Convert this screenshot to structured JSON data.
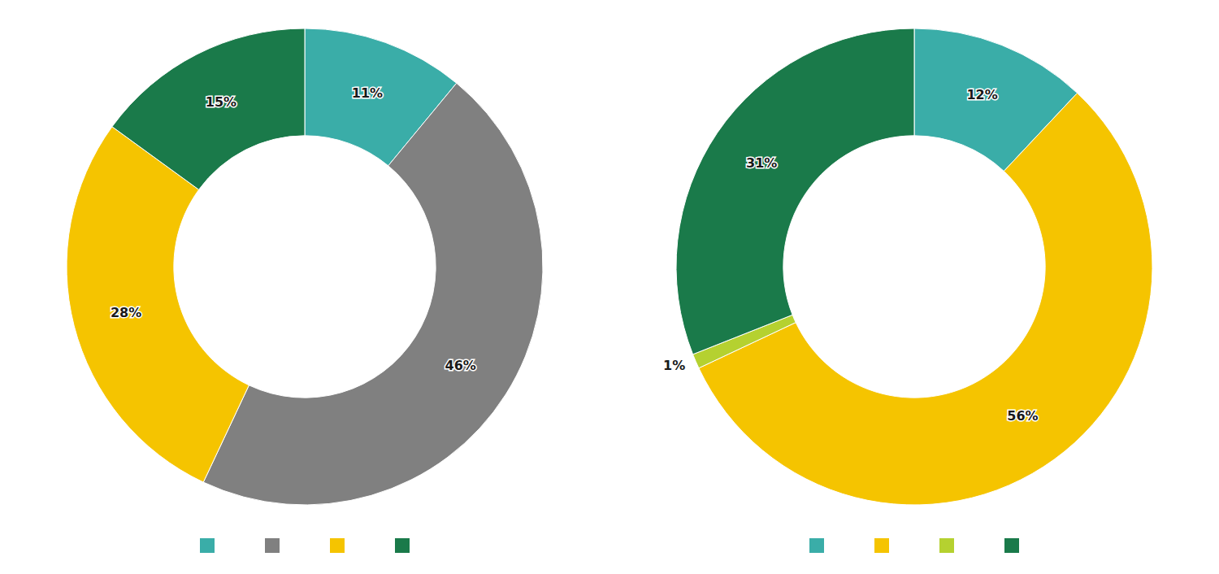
{
  "chart_data": [
    {
      "type": "donut",
      "values": [
        11,
        46,
        28,
        15
      ],
      "value_labels": [
        "11%",
        "46%",
        "28%",
        "15%"
      ],
      "colors": [
        "#3aada8",
        "#808080",
        "#f5c400",
        "#1a7a4a"
      ],
      "data_labels": true,
      "legend": "bottom"
    },
    {
      "type": "donut",
      "values": [
        12,
        56,
        1,
        31
      ],
      "value_labels": [
        "12%",
        "56%",
        "1%",
        "31%"
      ],
      "colors": [
        "#3aada8",
        "#f5c400",
        "#b5d130",
        "#1a7a4a"
      ],
      "data_labels": true,
      "legend": "bottom"
    }
  ]
}
